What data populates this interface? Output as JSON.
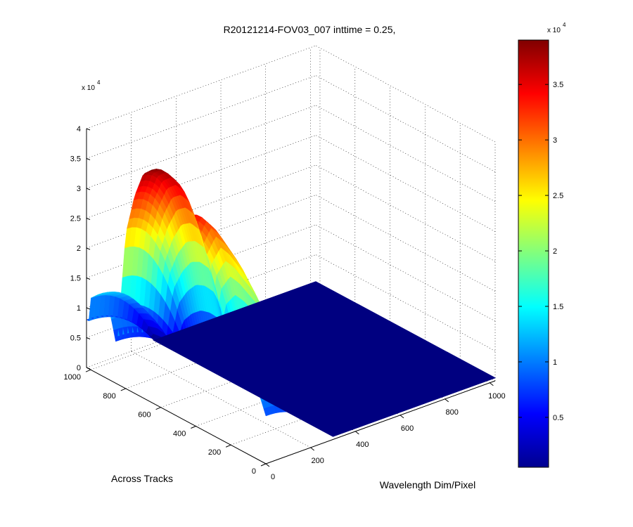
{
  "chart_data": {
    "type": "surface",
    "title": "R20121214-FOV03_007 inttime = 0.25,",
    "xlabel": "Wavelength Dim/Pixel",
    "ylabel": "Across Tracks",
    "zlabel": "",
    "xlim": [
      0,
      1024
    ],
    "ylim": [
      0,
      1024
    ],
    "zlim": [
      0,
      40000
    ],
    "x_ticks": [
      "0",
      "200",
      "400",
      "600",
      "800",
      "1000"
    ],
    "y_ticks": [
      "0",
      "200",
      "400",
      "600",
      "800",
      "1000"
    ],
    "z_ticks": [
      "0",
      "0.5",
      "1",
      "1.5",
      "2",
      "2.5",
      "3",
      "3.5",
      "4"
    ],
    "z_exponent": "x 10",
    "z_exponent_power": "4",
    "grid": true,
    "colormap": "jet",
    "colorbar": {
      "ticks": [
        "0.5",
        "1",
        "1.5",
        "2",
        "2.5",
        "3",
        "3.5"
      ],
      "exponent": "x 10",
      "exponent_power": "4",
      "range": [
        500,
        39000
      ]
    },
    "nonzero_x_range": [
      0,
      300
    ],
    "floor_value": 500,
    "profile_along_across_tracks": {
      "y": [
        1000,
        950,
        900,
        850,
        800,
        750,
        700,
        650,
        600,
        580,
        560,
        540,
        520,
        500,
        450,
        400,
        350,
        300,
        250,
        200,
        150,
        100,
        50,
        0
      ],
      "z": [
        12000,
        13500,
        12500,
        6000,
        26000,
        33000,
        37500,
        39000,
        38500,
        36500,
        33000,
        27000,
        24000,
        30000,
        34500,
        34000,
        32500,
        31000,
        28500,
        25500,
        22000,
        17000,
        12000,
        8000
      ]
    }
  }
}
